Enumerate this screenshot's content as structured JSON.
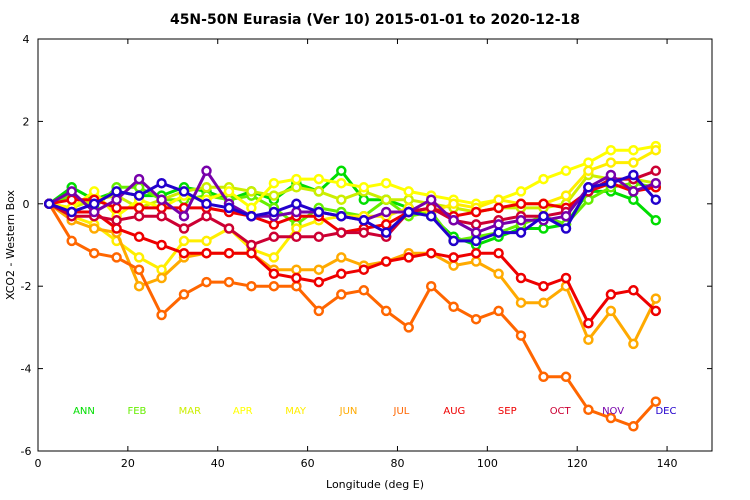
{
  "chart_data": {
    "type": "line",
    "title": "45N-50N Eurasia (Ver 10)   2015-01-01 to 2020-12-18",
    "xlabel": "Longitude (deg E)",
    "ylabel": "XCO2 - Western Box",
    "xlim": [
      0,
      150
    ],
    "ylim": [
      -6,
      4
    ],
    "xticks": [
      0,
      20,
      40,
      60,
      80,
      100,
      120,
      140
    ],
    "yticks": [
      -6,
      -4,
      -2,
      0,
      2,
      4
    ],
    "x": [
      2.5,
      7.5,
      12.5,
      17.5,
      22.5,
      27.5,
      32.5,
      37.5,
      42.5,
      47.5,
      52.5,
      57.5,
      62.5,
      67.5,
      72.5,
      77.5,
      82.5,
      87.5,
      92.5,
      97.5,
      102.5,
      107.5,
      112.5,
      117.5,
      122.5,
      127.5,
      132.5,
      137.5
    ],
    "series": [
      {
        "name": "ANN",
        "color": "#00dd00",
        "values": [
          0,
          0.4,
          0.1,
          0.3,
          0.2,
          0.2,
          0.4,
          0.3,
          0.1,
          0.3,
          0.1,
          0.5,
          0.3,
          0.8,
          0.1,
          0.1,
          -0.1,
          -0.3,
          -0.8,
          -1.0,
          -0.8,
          -0.6,
          -0.6,
          -0.5,
          0.3,
          0.3,
          0.1,
          -0.4
        ]
      },
      {
        "name": "FEB",
        "color": "#66ee00",
        "values": [
          0,
          0.2,
          -0.1,
          0.4,
          0.4,
          0.1,
          0.1,
          0.2,
          0.1,
          0.2,
          -0.1,
          -0.5,
          -0.1,
          -0.2,
          -0.3,
          0.1,
          -0.3,
          -0.2,
          -0.9,
          -0.8,
          -0.7,
          -0.5,
          -0.3,
          -0.5,
          0.1,
          0.4,
          0.5,
          0.4
        ]
      },
      {
        "name": "MAR",
        "color": "#ccee00",
        "values": [
          0,
          -0.1,
          0.1,
          0.2,
          -0.1,
          0.1,
          0.3,
          0.4,
          0.4,
          0.3,
          0.2,
          0.4,
          0.3,
          0.1,
          0.3,
          0.1,
          0.1,
          0.0,
          -0.1,
          -0.2,
          -0.1,
          -0.1,
          -0.1,
          0.0,
          0.7,
          0.6,
          0.6,
          0.5
        ]
      },
      {
        "name": "APR",
        "color": "#ffff00",
        "values": [
          0,
          -0.1,
          0.3,
          -0.3,
          0.1,
          -0.1,
          0.2,
          0.1,
          0.3,
          -0.1,
          0.5,
          0.6,
          0.6,
          0.5,
          0.4,
          0.5,
          0.3,
          0.2,
          0.1,
          0.0,
          0.1,
          0.3,
          0.6,
          0.8,
          1.0,
          1.3,
          1.3,
          1.4
        ]
      },
      {
        "name": "MAY",
        "color": "#ffee00",
        "values": [
          0,
          -0.3,
          -0.5,
          -0.9,
          -1.3,
          -1.6,
          -0.9,
          -0.9,
          -0.6,
          -1.1,
          -1.3,
          -0.6,
          -0.4,
          -0.3,
          -0.3,
          -0.3,
          -0.1,
          -0.2,
          0.0,
          -0.1,
          0.1,
          0.0,
          0.0,
          0.2,
          0.8,
          1.0,
          1.0,
          1.3
        ]
      },
      {
        "name": "JUN",
        "color": "#ffaa00",
        "values": [
          0,
          -0.4,
          -0.6,
          -0.7,
          -2.0,
          -1.8,
          -1.3,
          -1.2,
          -1.2,
          -1.2,
          -1.6,
          -1.6,
          -1.6,
          -1.3,
          -1.5,
          -1.4,
          -1.2,
          -1.2,
          -1.5,
          -1.4,
          -1.7,
          -2.4,
          -2.4,
          -2.0,
          -3.3,
          -2.6,
          -3.4,
          -2.3
        ]
      },
      {
        "name": "JUL",
        "color": "#ff6600",
        "values": [
          0,
          -0.9,
          -1.2,
          -1.3,
          -1.6,
          -2.7,
          -2.2,
          -1.9,
          -1.9,
          -2.0,
          -2.0,
          -2.0,
          -2.6,
          -2.2,
          -2.1,
          -2.6,
          -3.0,
          -2.0,
          -2.5,
          -2.8,
          -2.6,
          -3.2,
          -4.2,
          -4.2,
          -5.0,
          -5.2,
          -5.4,
          -4.8
        ]
      },
      {
        "name": "AUG",
        "color": "#ee0000",
        "values": [
          0,
          -0.2,
          -0.2,
          -0.6,
          -0.8,
          -1.0,
          -1.2,
          -1.2,
          -1.2,
          -1.2,
          -1.7,
          -1.8,
          -1.9,
          -1.7,
          -1.6,
          -1.4,
          -1.3,
          -1.2,
          -1.3,
          -1.2,
          -1.2,
          -1.8,
          -2.0,
          -1.8,
          -2.9,
          -2.2,
          -2.1,
          -2.6
        ]
      },
      {
        "name": "SEP",
        "color": "#ee0000",
        "values": [
          0,
          0.1,
          0.1,
          -0.1,
          -0.1,
          -0.1,
          -0.1,
          -0.1,
          -0.2,
          -0.3,
          -0.5,
          -0.3,
          -0.3,
          -0.7,
          -0.6,
          -0.5,
          -0.2,
          -0.1,
          -0.3,
          -0.2,
          -0.1,
          0.0,
          0.0,
          -0.1,
          0.3,
          0.5,
          0.3,
          0.4
        ]
      },
      {
        "name": "OCT",
        "color": "#cc0033",
        "values": [
          0,
          -0.3,
          -0.3,
          -0.4,
          -0.3,
          -0.3,
          -0.6,
          -0.3,
          -0.6,
          -1.0,
          -0.8,
          -0.8,
          -0.8,
          -0.7,
          -0.7,
          -0.8,
          -0.2,
          -0.1,
          -0.4,
          -0.5,
          -0.4,
          -0.3,
          -0.3,
          -0.2,
          0.3,
          0.6,
          0.6,
          0.8
        ]
      },
      {
        "name": "NOV",
        "color": "#7700aa",
        "values": [
          0,
          0.3,
          -0.2,
          0.1,
          0.6,
          0.1,
          -0.3,
          0.8,
          0.0,
          -0.3,
          -0.3,
          -0.2,
          -0.2,
          -0.3,
          -0.4,
          -0.2,
          -0.2,
          0.1,
          -0.4,
          -0.7,
          -0.5,
          -0.4,
          -0.4,
          -0.3,
          0.4,
          0.7,
          0.3,
          0.5
        ]
      },
      {
        "name": "DEC",
        "color": "#2200cc",
        "values": [
          0,
          -0.2,
          0.0,
          0.3,
          0.2,
          0.5,
          0.3,
          0.0,
          -0.1,
          -0.3,
          -0.2,
          0.0,
          -0.2,
          -0.3,
          -0.4,
          -0.7,
          -0.2,
          -0.3,
          -0.9,
          -0.9,
          -0.7,
          -0.7,
          -0.3,
          -0.6,
          0.4,
          0.5,
          0.7,
          0.1
        ]
      }
    ]
  }
}
